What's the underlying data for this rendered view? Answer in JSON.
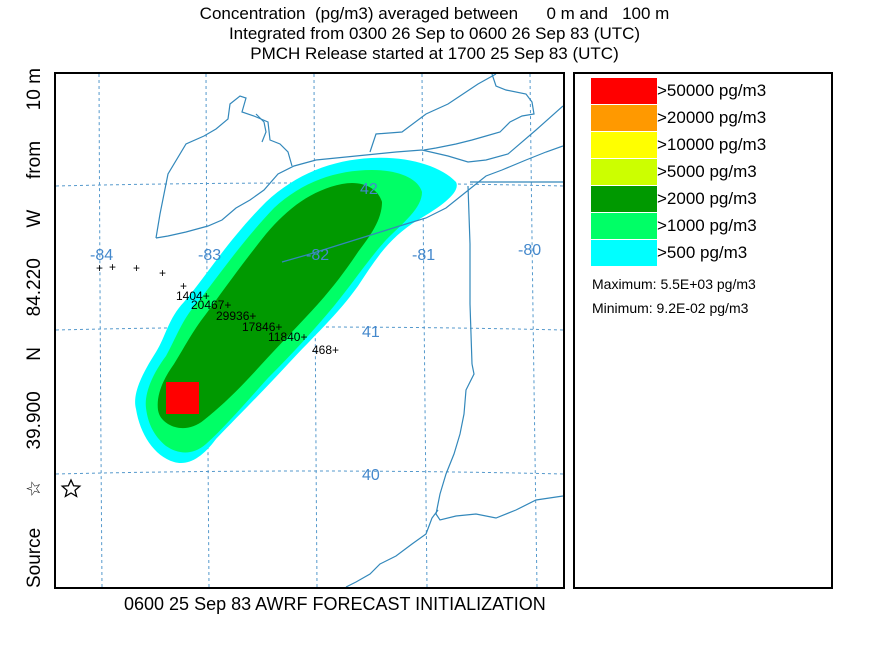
{
  "header": {
    "line1": "Concentration  (pg/m3) averaged between      0 m and   100 m",
    "line2": "Integrated from 0300 26 Sep to 0600 26 Sep 83 (UTC)",
    "line3": "PMCH Release started at 1700 25 Sep 83 (UTC)"
  },
  "side_label": {
    "source": "Source",
    "lat": "39.900",
    "n": "N",
    "lon": "84.220",
    "w": "W",
    "from": "from",
    "height": "10 m"
  },
  "footer": "0600 25 Sep 83 AWRF FORECAST INITIALIZATION",
  "map": {
    "lon_labels": [
      "-84",
      "-83",
      "-82",
      "-81",
      "-80"
    ],
    "lat_labels": [
      "42",
      "41",
      "40"
    ],
    "receptors": [
      {
        "value": "1404"
      },
      {
        "value": "20467"
      },
      {
        "value": "29936"
      },
      {
        "value": "17846"
      },
      {
        "value": "11840"
      },
      {
        "value": "468"
      }
    ]
  },
  "legend": {
    "items": [
      {
        "label": ">50000 pg/m3",
        "color": "#ff0000"
      },
      {
        "label": ">20000 pg/m3",
        "color": "#ff9900"
      },
      {
        "label": ">10000 pg/m3",
        "color": "#ffff00"
      },
      {
        "label": ">5000 pg/m3",
        "color": "#ccff00"
      },
      {
        "label": ">2000 pg/m3",
        "color": "#009900"
      },
      {
        "label": ">1000 pg/m3",
        "color": "#00ff66"
      },
      {
        "label": ">500 pg/m3",
        "color": "#00ffff"
      }
    ],
    "maximum": "Maximum: 5.5E+03 pg/m3",
    "minimum": "Minimum: 9.2E-02 pg/m3"
  },
  "colors": {
    "grid": "#5599cc",
    "border": "#3388bb",
    "label": "#4488cc"
  }
}
